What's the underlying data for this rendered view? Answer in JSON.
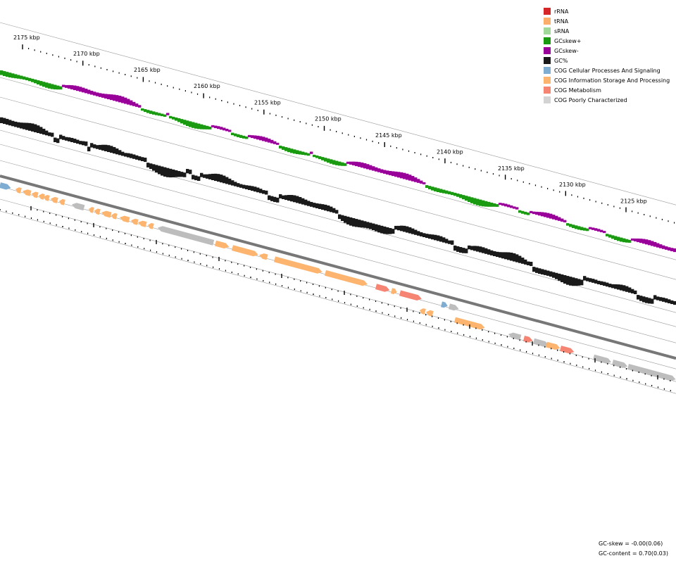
{
  "legend": {
    "items": [
      {
        "label": "rRNA",
        "color": "#d62728"
      },
      {
        "label": "tRNA",
        "color": "#fdae6b"
      },
      {
        "label": "sRNA",
        "color": "#a1d99b"
      },
      {
        "label": "GCskew+",
        "color": "#1a9a10"
      },
      {
        "label": "GCskew-",
        "color": "#990099"
      },
      {
        "label": "GC%",
        "color": "#1a1a1a"
      },
      {
        "label": "COG Cellular Processes And Signaling",
        "color": "#7fadd2"
      },
      {
        "label": "COG Information Storage And Processing",
        "color": "#fdb46e"
      },
      {
        "label": "COG Metabolism",
        "color": "#f58473"
      },
      {
        "label": "COG Poorly Characterized",
        "color": "#d3d3d3"
      }
    ]
  },
  "scale": {
    "tick_labels": [
      "2175 kbp",
      "2170 kbp",
      "2165 kbp",
      "2160 kbp",
      "2155 kbp",
      "2150 kbp",
      "2145 kbp",
      "2140 kbp",
      "2135 kbp",
      "2130 kbp",
      "2125 kbp"
    ]
  },
  "stats": {
    "gc_skew": "GC-skew = -0.00(0.06)",
    "gc_content": "GC-content = 0.70(0.03)"
  },
  "colors": {
    "backbone": "#777777",
    "ring_line": "#999999",
    "poorly": "#bdbdbd",
    "info": "#fdb46e",
    "metab": "#f58473",
    "cell": "#7fadd2"
  }
}
